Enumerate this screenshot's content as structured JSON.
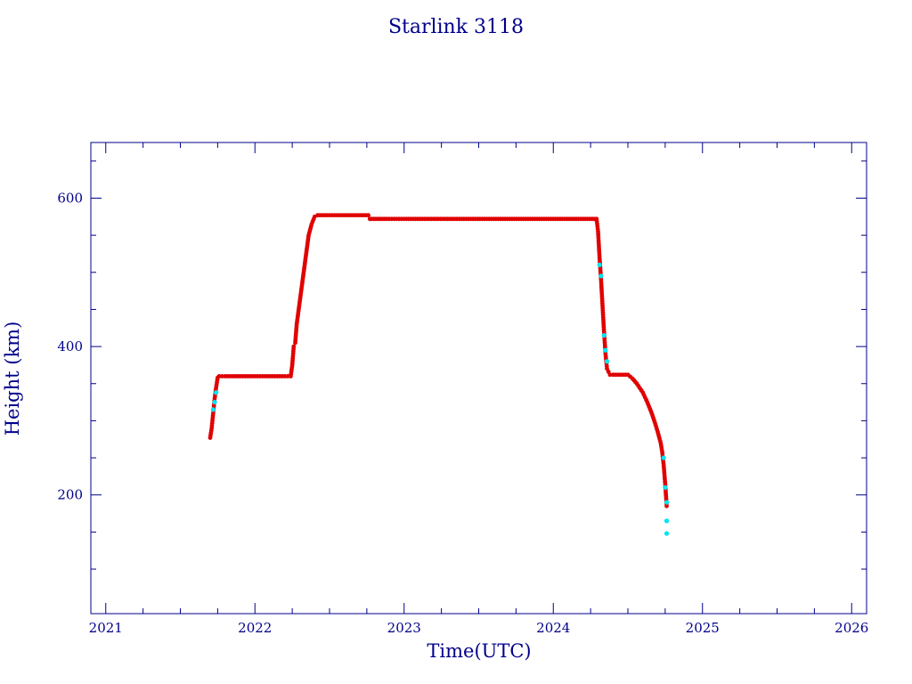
{
  "chart_data": {
    "type": "scatter",
    "title": "Starlink 3118",
    "xlabel": "Time(UTC)",
    "ylabel": "Height (km)",
    "xlim": [
      2020.9,
      2026.1
    ],
    "ylim": [
      40,
      675
    ],
    "x_ticks": [
      2021,
      2022,
      2023,
      2024,
      2025,
      2026
    ],
    "x_tick_labels": [
      "2021",
      "2022",
      "2023",
      "2024",
      "2025",
      "2026"
    ],
    "y_ticks": [
      200,
      400,
      600
    ],
    "y_tick_labels": [
      "200",
      "400",
      "600"
    ],
    "grid": false,
    "colors": {
      "axis": "#00008b",
      "series_red": "#e00000",
      "series_cyan": "#00e5ee"
    },
    "series": [
      {
        "color": "red",
        "x": [
          2021.7,
          2021.71,
          2021.72,
          2021.73,
          2021.74,
          2021.75,
          2021.76,
          2021.8,
          2021.85,
          2021.9,
          2022.0,
          2022.1,
          2022.2,
          2022.24,
          2022.25,
          2022.26,
          2022.27,
          2022.28,
          2022.3,
          2022.32,
          2022.34,
          2022.36,
          2022.38,
          2022.4,
          2022.42,
          2022.5,
          2022.6,
          2022.7,
          2022.76,
          2022.77,
          2022.78,
          2022.9,
          2023.0,
          2023.2,
          2023.4,
          2023.6,
          2023.8,
          2024.0,
          2024.2,
          2024.29,
          2024.3,
          2024.31,
          2024.32,
          2024.33,
          2024.34,
          2024.35,
          2024.36,
          2024.38,
          2024.4,
          2024.45,
          2024.5,
          2024.53,
          2024.56,
          2024.6,
          2024.63,
          2024.66,
          2024.68,
          2024.7,
          2024.72,
          2024.73,
          2024.74,
          2024.75,
          2024.76
        ],
        "y": [
          277,
          290,
          310,
          330,
          345,
          358,
          360,
          360,
          360,
          360,
          360,
          360,
          360,
          360,
          375,
          400,
          405,
          430,
          460,
          490,
          520,
          550,
          565,
          575,
          577,
          577,
          577,
          577,
          577,
          572,
          572,
          572,
          572,
          572,
          572,
          572,
          572,
          572,
          572,
          572,
          555,
          520,
          490,
          455,
          420,
          390,
          370,
          362,
          362,
          362,
          362,
          357,
          350,
          338,
          325,
          310,
          298,
          285,
          270,
          258,
          240,
          215,
          185
        ]
      },
      {
        "color": "cyan",
        "x": [
          2021.72,
          2021.73,
          2021.74,
          2024.31,
          2024.32,
          2024.34,
          2024.35,
          2024.36,
          2024.74,
          2024.75,
          2024.76,
          2024.76,
          2024.76
        ],
        "y": [
          315,
          325,
          338,
          510,
          495,
          415,
          395,
          380,
          250,
          210,
          190,
          165,
          148
        ]
      }
    ]
  }
}
